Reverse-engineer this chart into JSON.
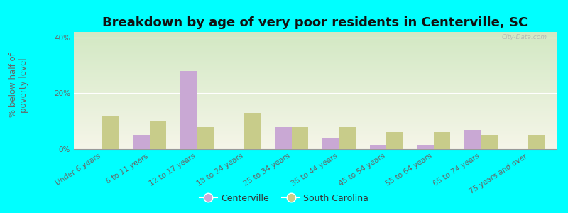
{
  "title": "Breakdown by age of very poor residents in Centerville, SC",
  "ylabel": "% below half of\npoverty level",
  "categories": [
    "Under 6 years",
    "6 to 11 years",
    "12 to 17 years",
    "18 to 24 years",
    "25 to 34 years",
    "35 to 44 years",
    "45 to 54 years",
    "55 to 64 years",
    "65 to 74 years",
    "75 years and over"
  ],
  "centerville": [
    0,
    5,
    28,
    0,
    8,
    4,
    1.5,
    1.5,
    7,
    0
  ],
  "south_carolina": [
    12,
    10,
    8,
    13,
    8,
    8,
    6,
    6,
    5,
    5
  ],
  "centerville_color": "#c9a8d4",
  "south_carolina_color": "#c8cc8a",
  "background_color": "#00ffff",
  "plot_bg_top": "#f0f0e0",
  "plot_bg_bottom": "#d0e8c0",
  "ylim": [
    0,
    42
  ],
  "yticks": [
    0,
    20,
    40
  ],
  "ytick_labels": [
    "0%",
    "20%",
    "40%"
  ],
  "bar_width": 0.35,
  "title_fontsize": 13,
  "axis_label_fontsize": 8.5,
  "tick_fontsize": 7.5,
  "legend_labels": [
    "Centerville",
    "South Carolina"
  ],
  "watermark": "City-Data.com"
}
